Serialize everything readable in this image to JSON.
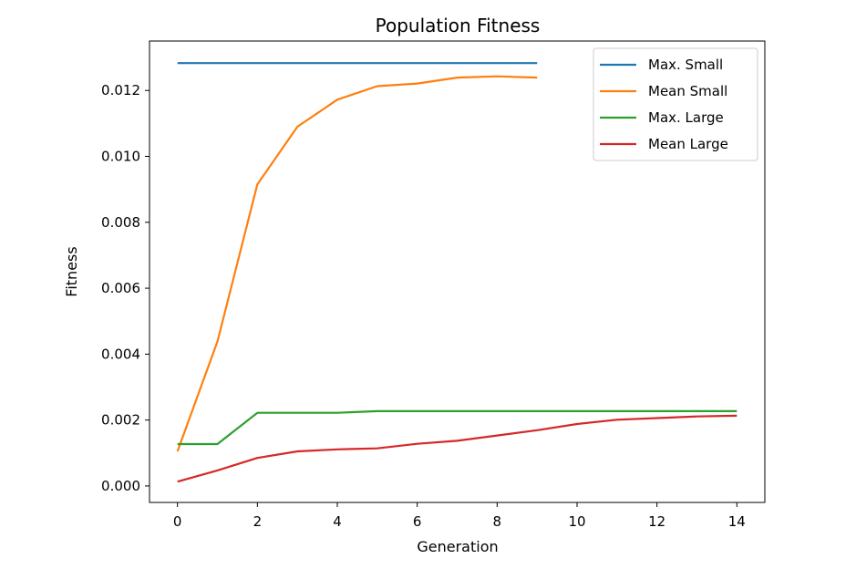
{
  "chart_data": {
    "type": "line",
    "title": "Population Fitness",
    "xlabel": "Generation",
    "ylabel": "Fitness",
    "xlim": [
      -0.7,
      14.7
    ],
    "ylim": [
      -0.0005,
      0.0135
    ],
    "xticks": [
      "0",
      "2",
      "4",
      "6",
      "8",
      "10",
      "12",
      "14"
    ],
    "yticks": [
      "0.000",
      "0.002",
      "0.004",
      "0.006",
      "0.008",
      "0.010",
      "0.012"
    ],
    "grid": false,
    "legend_position": "top-right",
    "series": [
      {
        "name": "Max. Small",
        "color": "#1f77b4",
        "x": [
          0,
          1,
          2,
          3,
          4,
          5,
          6,
          7,
          8,
          9
        ],
        "values": [
          0.01283,
          0.01283,
          0.01283,
          0.01283,
          0.01283,
          0.01283,
          0.01283,
          0.01283,
          0.01283,
          0.01283
        ]
      },
      {
        "name": "Mean Small",
        "color": "#ff7f0e",
        "x": [
          0,
          1,
          2,
          3,
          4,
          5,
          6,
          7,
          8,
          9
        ],
        "values": [
          0.00105,
          0.00438,
          0.00915,
          0.0109,
          0.01172,
          0.01213,
          0.01221,
          0.01239,
          0.01243,
          0.01239
        ]
      },
      {
        "name": "Max. Large",
        "color": "#2ca02c",
        "x": [
          0,
          1,
          2,
          3,
          4,
          5,
          6,
          7,
          8,
          9,
          10,
          11,
          12,
          13,
          14
        ],
        "values": [
          0.00127,
          0.00127,
          0.00222,
          0.00222,
          0.00222,
          0.00227,
          0.00227,
          0.00227,
          0.00227,
          0.00227,
          0.00227,
          0.00227,
          0.00227,
          0.00227,
          0.00227
        ]
      },
      {
        "name": "Mean Large",
        "color": "#d62728",
        "x": [
          0,
          1,
          2,
          3,
          4,
          5,
          6,
          7,
          8,
          9,
          10,
          11,
          12,
          13,
          14
        ],
        "values": [
          0.00013,
          0.00047,
          0.00085,
          0.00105,
          0.00111,
          0.00114,
          0.00128,
          0.00137,
          0.00153,
          0.00169,
          0.00188,
          0.00201,
          0.00206,
          0.00211,
          0.00213
        ]
      }
    ]
  }
}
